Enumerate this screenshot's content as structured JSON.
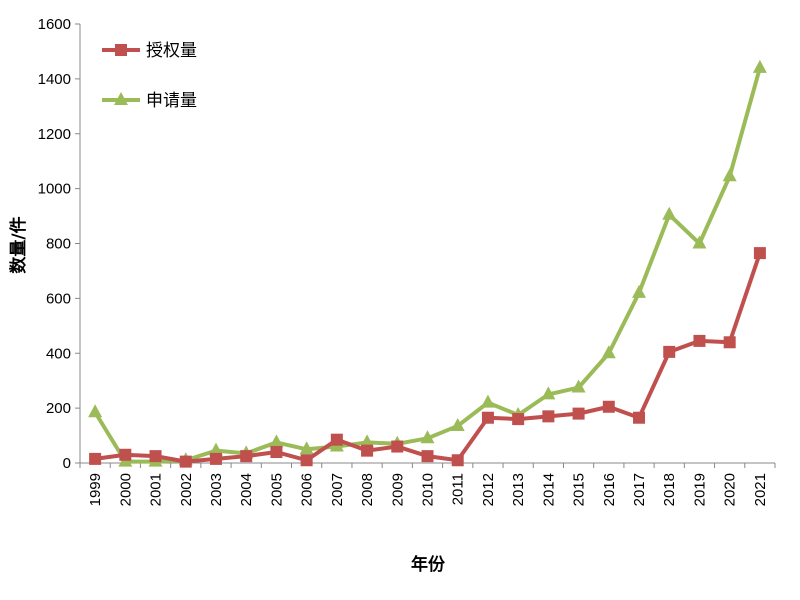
{
  "chart_data": {
    "type": "line",
    "xlabel": "年份",
    "ylabel": "数量/件",
    "ylim": [
      0,
      1600
    ],
    "yticks": [
      0,
      200,
      400,
      600,
      800,
      1000,
      1200,
      1400,
      1600
    ],
    "grid": false,
    "legend_position": "top-left",
    "categories": [
      "1999",
      "2000",
      "2001",
      "2002",
      "2003",
      "2004",
      "2005",
      "2006",
      "2007",
      "2008",
      "2009",
      "2010",
      "2011",
      "2012",
      "2013",
      "2014",
      "2015",
      "2016",
      "2017",
      "2018",
      "2019",
      "2020",
      "2021"
    ],
    "series": [
      {
        "name": "授权量",
        "color": "#c0504d",
        "marker": "square",
        "values": [
          15,
          30,
          25,
          5,
          15,
          25,
          40,
          10,
          85,
          45,
          60,
          25,
          10,
          165,
          160,
          170,
          180,
          205,
          165,
          405,
          445,
          440,
          765
        ]
      },
      {
        "name": "申请量",
        "color": "#9bbb59",
        "marker": "triangle",
        "values": [
          185,
          5,
          5,
          10,
          45,
          35,
          75,
          50,
          60,
          75,
          70,
          90,
          135,
          220,
          175,
          250,
          275,
          400,
          620,
          905,
          800,
          1045,
          1440
        ]
      }
    ]
  }
}
